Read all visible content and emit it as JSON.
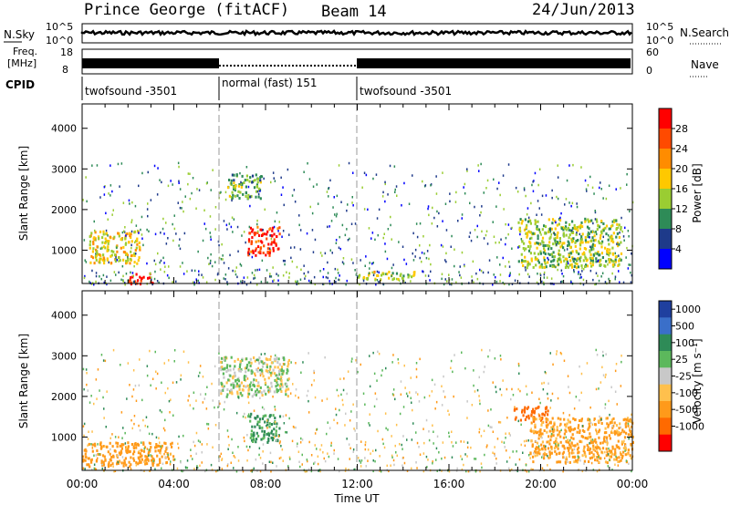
{
  "header": {
    "station": "Prince George (fitACF)",
    "beam": "Beam 14",
    "date": "24/Jun/2013"
  },
  "sky_panel": {
    "left_label": "N.Sky",
    "right_label": "N.Search",
    "left_ticks": [
      "10^5",
      "10^0"
    ],
    "right_ticks": [
      "10^5",
      "10^0"
    ]
  },
  "freq_panel": {
    "left_label_line1": "Freq.",
    "left_label_line2": "[MHz]",
    "right_label": "Nave",
    "left_ticks": [
      "18",
      "8"
    ],
    "right_ticks": [
      "60",
      "0"
    ]
  },
  "cpid": {
    "label": "CPID",
    "segments": [
      {
        "name": "twofsound -3501",
        "start_hour": 0,
        "end_hour": 6
      },
      {
        "name": "normal (fast) 151",
        "start_hour": 6,
        "end_hour": 12
      },
      {
        "name": "twofsound -3501",
        "start_hour": 12,
        "end_hour": 24
      }
    ]
  },
  "power_panel": {
    "ylabel": "Slant Range [km]",
    "cbar_label": "Power [dB]",
    "cbar_ticks": [
      "28",
      "24",
      "20",
      "16",
      "12",
      "8",
      "4"
    ],
    "cbar_colors": [
      "#ff0000",
      "#ff4a00",
      "#ff8c00",
      "#ffc800",
      "#9acd32",
      "#2e8b57",
      "#1e3a8a",
      "#0000ff"
    ]
  },
  "velocity_panel": {
    "ylabel": "Slant Range [km]",
    "cbar_label": "Velocity [m s⁻¹]",
    "cbar_ticks": [
      "1000",
      "500",
      "100",
      "25",
      "-25",
      "-100",
      "-500",
      "-1000"
    ],
    "cbar_colors": [
      "#1f3f9f",
      "#3a6fc9",
      "#2e8b57",
      "#5cb85c",
      "#c8c8c8",
      "#ffc04d",
      "#ff9a1a",
      "#ff6a00",
      "#ff0000"
    ]
  },
  "x_axis": {
    "label": "Time UT",
    "ticks": [
      "00:00",
      "04:00",
      "08:00",
      "12:00",
      "16:00",
      "20:00",
      "00:00"
    ]
  },
  "y_axis_ticks": [
    "4000",
    "3000",
    "2000",
    "1000"
  ],
  "chart_data": {
    "type": "heatmap",
    "title": "Prince George (fitACF) Beam 14 24/Jun/2013",
    "xlabel": "Time UT",
    "ylabel": "Slant Range [km]",
    "xlim_hours": [
      0,
      24
    ],
    "ylim_km": [
      180,
      4600
    ],
    "power_scale_db": [
      0,
      30
    ],
    "velocity_scale_ms": [
      -1000,
      1000
    ],
    "mode_changes_hours": [
      6,
      12
    ],
    "frequency_mhz": {
      "twofsound": 13.5,
      "normal_fast": 12.0
    },
    "power_features": [
      {
        "t_start": 2.0,
        "t_end": 3.1,
        "r_start": 200,
        "r_end": 450,
        "power_db": 30
      },
      {
        "t_start": 7.2,
        "t_end": 8.6,
        "r_start": 900,
        "r_end": 1600,
        "power_db": 28
      },
      {
        "t_start": 6.3,
        "t_end": 7.8,
        "r_start": 2300,
        "r_end": 2900,
        "power_db": 12
      },
      {
        "t_start": 0.3,
        "t_end": 2.5,
        "r_start": 700,
        "r_end": 1500,
        "power_db": 18
      },
      {
        "t_start": 19.0,
        "t_end": 23.5,
        "r_start": 600,
        "r_end": 1800,
        "power_db": 14
      },
      {
        "t_start": 12.0,
        "t_end": 14.5,
        "r_start": 300,
        "r_end": 500,
        "power_db": 16
      }
    ],
    "velocity_features": [
      {
        "t_start": 18.8,
        "t_end": 20.3,
        "r_start": 1400,
        "r_end": 1800,
        "velocity_ms": -800
      },
      {
        "t_start": 7.2,
        "t_end": 8.6,
        "r_start": 900,
        "r_end": 1600,
        "velocity_ms": 150
      },
      {
        "t_start": 0.0,
        "t_end": 4.0,
        "r_start": 300,
        "r_end": 900,
        "velocity_ms": -200
      },
      {
        "t_start": 6.0,
        "t_end": 9.0,
        "r_start": 2000,
        "r_end": 3000,
        "velocity_ms": 0
      },
      {
        "t_start": 19.5,
        "t_end": 24.0,
        "r_start": 400,
        "r_end": 1500,
        "velocity_ms": -150
      }
    ]
  }
}
